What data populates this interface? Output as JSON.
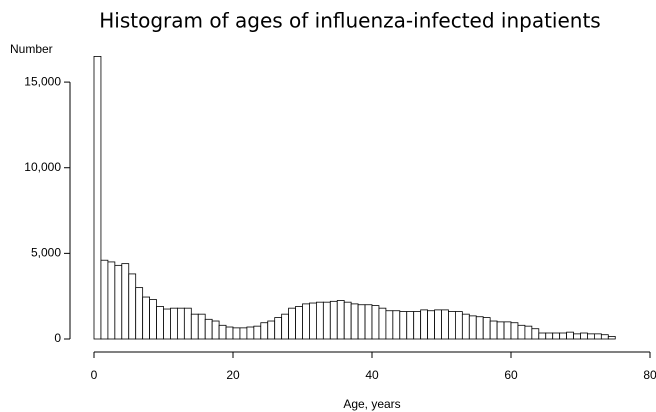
{
  "chart_data": {
    "type": "histogram",
    "title": "Histogram of ages of influenza-infected inpatients",
    "xlabel": "Age, years",
    "ylabel": "Number",
    "bins": [
      0,
      1,
      2,
      3,
      4,
      5,
      6,
      7,
      8,
      9,
      10,
      11,
      12,
      13,
      14,
      15,
      16,
      17,
      18,
      19,
      20,
      21,
      22,
      23,
      24,
      25,
      26,
      27,
      28,
      29,
      30,
      31,
      32,
      33,
      34,
      35,
      36,
      37,
      38,
      39,
      40,
      41,
      42,
      43,
      44,
      45,
      46,
      47,
      48,
      49,
      50,
      51,
      52,
      53,
      54,
      55,
      56,
      57,
      58,
      59,
      60,
      61,
      62,
      63,
      64,
      65,
      66,
      67,
      68,
      69,
      70,
      71,
      72,
      73,
      74,
      75
    ],
    "values": [
      16500,
      4600,
      4500,
      4300,
      4400,
      3800,
      3000,
      2450,
      2300,
      1900,
      1750,
      1800,
      1800,
      1800,
      1450,
      1450,
      1150,
      1050,
      800,
      700,
      650,
      650,
      700,
      750,
      950,
      1050,
      1250,
      1450,
      1800,
      1900,
      2050,
      2100,
      2150,
      2150,
      2200,
      2250,
      2150,
      2050,
      2000,
      2000,
      1950,
      1800,
      1650,
      1650,
      1600,
      1600,
      1600,
      1700,
      1650,
      1700,
      1700,
      1600,
      1600,
      1450,
      1350,
      1300,
      1250,
      1050,
      1000,
      1000,
      950,
      800,
      750,
      600,
      350,
      350,
      350,
      350,
      400,
      300,
      350,
      300,
      300,
      250,
      150
    ],
    "color": "#ffffff",
    "edgecolor": "#000000",
    "xlim": [
      0,
      80
    ],
    "xticks": [
      0,
      20,
      40,
      60,
      80
    ],
    "ylim": [
      0,
      16500
    ],
    "yticks": [
      0,
      {
        "value": 5000,
        "label": "5,000"
      },
      {
        "value": 10000,
        "label": "10,000"
      },
      {
        "value": 15000,
        "label": "15,000"
      }
    ]
  }
}
